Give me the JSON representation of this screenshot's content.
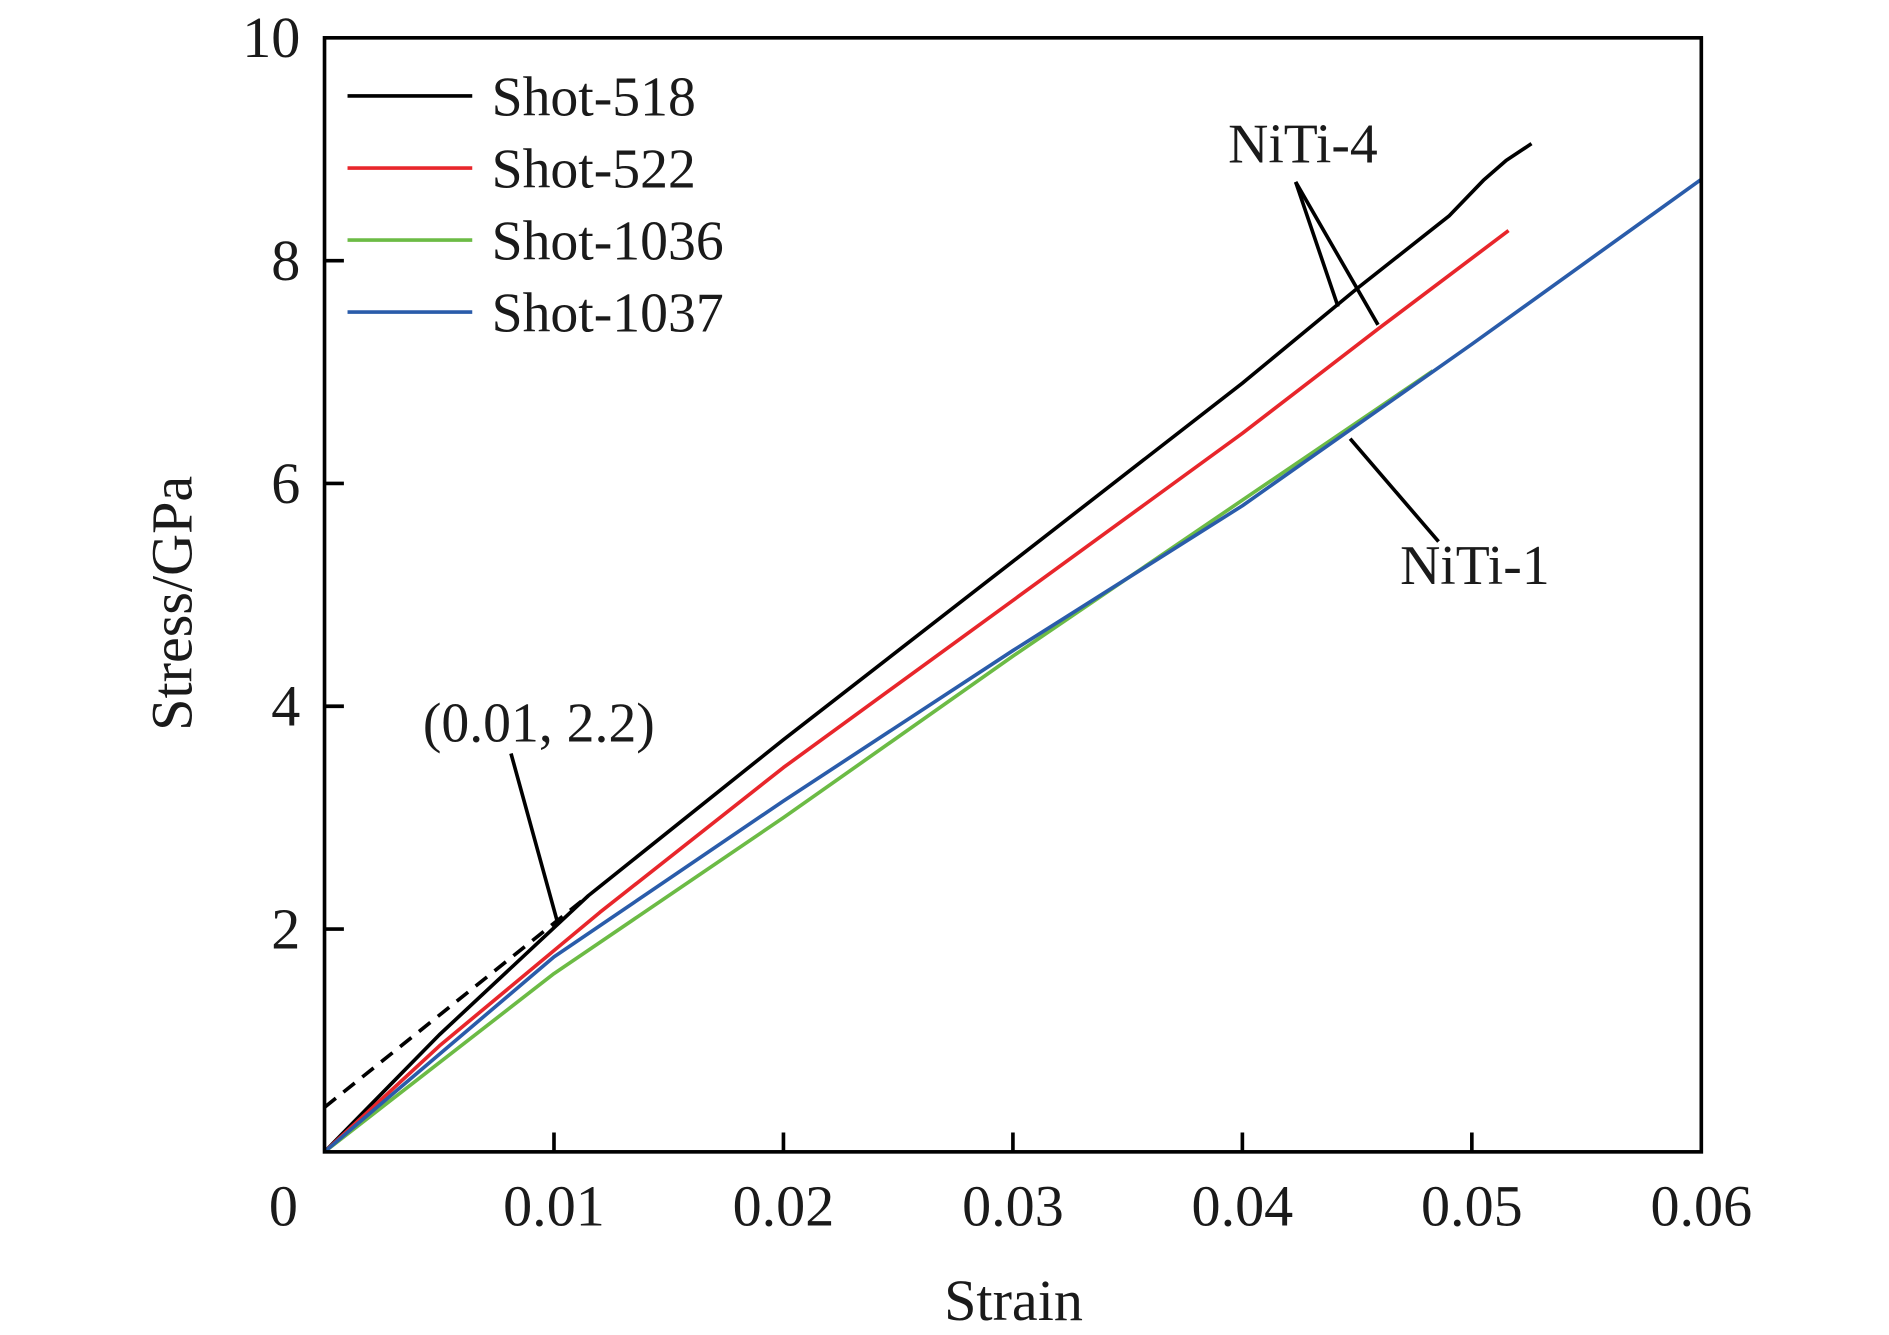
{
  "chart_data": {
    "type": "line",
    "title": "",
    "xlabel": "Strain",
    "ylabel": "Stress/GPa",
    "xlim": [
      0,
      0.06
    ],
    "ylim": [
      0,
      10
    ],
    "xticks": [
      0,
      0.01,
      0.02,
      0.03,
      0.04,
      0.05,
      0.06
    ],
    "xtick_labels": [
      "0",
      "0.01",
      "0.02",
      "0.03",
      "0.04",
      "0.05",
      "0.06"
    ],
    "yticks": [
      2,
      4,
      6,
      8,
      10
    ],
    "ytick_labels": [
      "2",
      "4",
      "6",
      "8",
      "10"
    ],
    "grid": false,
    "legend_position": "top-left",
    "series": [
      {
        "name": "Shot-518",
        "color": "#000000",
        "x": [
          0,
          0.005,
          0.0115,
          0.02,
          0.03,
          0.04,
          0.045,
          0.049,
          0.0505,
          0.0515,
          0.0526
        ],
        "y": [
          0,
          1.05,
          2.3,
          3.7,
          5.3,
          6.9,
          7.75,
          8.4,
          8.72,
          8.9,
          9.05
        ]
      },
      {
        "name": "Shot-522",
        "color": "#e8262b",
        "x": [
          0,
          0.005,
          0.012,
          0.02,
          0.03,
          0.04,
          0.046,
          0.0516
        ],
        "y": [
          0,
          0.95,
          2.15,
          3.45,
          4.95,
          6.45,
          7.4,
          8.27
        ]
      },
      {
        "name": "Shot-1036",
        "color": "#6cbb45",
        "x": [
          0,
          0.01,
          0.02,
          0.03,
          0.04,
          0.0483
        ],
        "y": [
          0,
          1.6,
          3.0,
          4.45,
          5.85,
          7.01
        ]
      },
      {
        "name": "Shot-1037",
        "color": "#2a5caa",
        "x": [
          0,
          0.01,
          0.02,
          0.03,
          0.04,
          0.05,
          0.06
        ],
        "y": [
          0,
          1.75,
          3.15,
          4.5,
          5.8,
          7.25,
          8.73
        ]
      }
    ],
    "reference_line": {
      "style": "dashed",
      "color": "#000000",
      "x": [
        0,
        0.0115
      ],
      "y": [
        0.4,
        2.3
      ]
    },
    "annotations": [
      {
        "text": "(0.01, 2.2)",
        "points_to": [
          0.0102,
          2.0
        ]
      },
      {
        "text": "NiTi-4",
        "points_to": [
          [
            0.044,
            7.6
          ],
          [
            0.046,
            7.4
          ]
        ]
      },
      {
        "text": "NiTi-1",
        "points_to": [
          [
            0.0447,
            6.4
          ]
        ]
      }
    ]
  }
}
